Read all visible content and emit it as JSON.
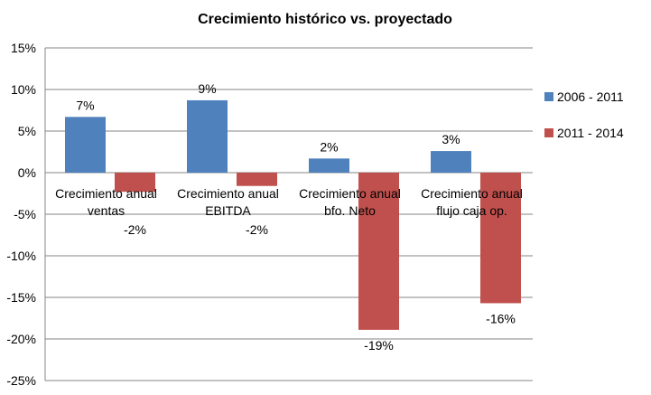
{
  "chart_data": {
    "type": "bar",
    "title": "Crecimiento histórico vs. proyectado",
    "categories": [
      "Crecimiento anual ventas",
      "Crecimiento anual EBITDA",
      "Crecimiento anual bfo. Neto",
      "Crecimiento anual flujo caja op."
    ],
    "category_lines": [
      [
        "Crecimiento anual",
        "ventas"
      ],
      [
        "Crecimiento anual",
        "EBITDA"
      ],
      [
        "Crecimiento anual",
        "bfo. Neto"
      ],
      [
        "Crecimiento anual",
        "flujo caja op."
      ]
    ],
    "series": [
      {
        "name": "2006 - 2011",
        "color": "#4F81BD",
        "values": [
          6.7,
          8.7,
          1.7,
          2.6
        ],
        "labels": [
          "7%",
          "9%",
          "2%",
          "3%"
        ]
      },
      {
        "name": "2011 - 2014",
        "color": "#C0504D",
        "values": [
          -2.3,
          -1.6,
          -18.9,
          -15.7
        ],
        "labels": [
          "-2%",
          "-2%",
          "-19%",
          "-16%"
        ]
      }
    ],
    "ylim": [
      -25,
      15
    ],
    "yticks": [
      15,
      10,
      5,
      0,
      -5,
      -10,
      -15,
      -20,
      -25
    ],
    "ytick_labels": [
      "15%",
      "10%",
      "5%",
      "0%",
      "-5%",
      "-10%",
      "-15%",
      "-20%",
      "-25%"
    ],
    "grid": true,
    "legend": "right",
    "xlabel": "",
    "ylabel": ""
  }
}
